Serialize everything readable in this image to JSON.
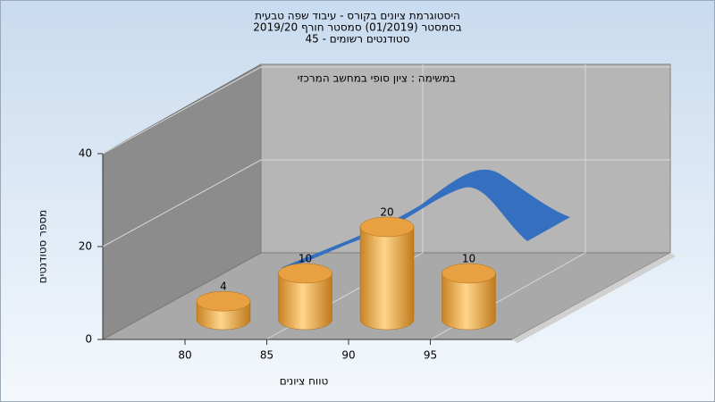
{
  "chart_data": {
    "type": "bar",
    "title": [
      "היסטוגרמת ציונים בקורס - עיבוד שפה טבעית",
      "בסמסטר  (01/2019)  סמסטר חורף 2019/20",
      "סטודנטים רשומים - 45"
    ],
    "annotation": "במשימה : ציון סופי במחשב המרכזי",
    "x_label": "טווח ציונים",
    "y_label": "מספר סטודנטים",
    "categories": [
      "80",
      "85",
      "90",
      "95"
    ],
    "values": [
      4,
      10,
      20,
      10
    ],
    "color": "#e8a040",
    "ylim": [
      0,
      40
    ],
    "yticks": [
      0,
      20,
      40
    ],
    "grid": true
  }
}
